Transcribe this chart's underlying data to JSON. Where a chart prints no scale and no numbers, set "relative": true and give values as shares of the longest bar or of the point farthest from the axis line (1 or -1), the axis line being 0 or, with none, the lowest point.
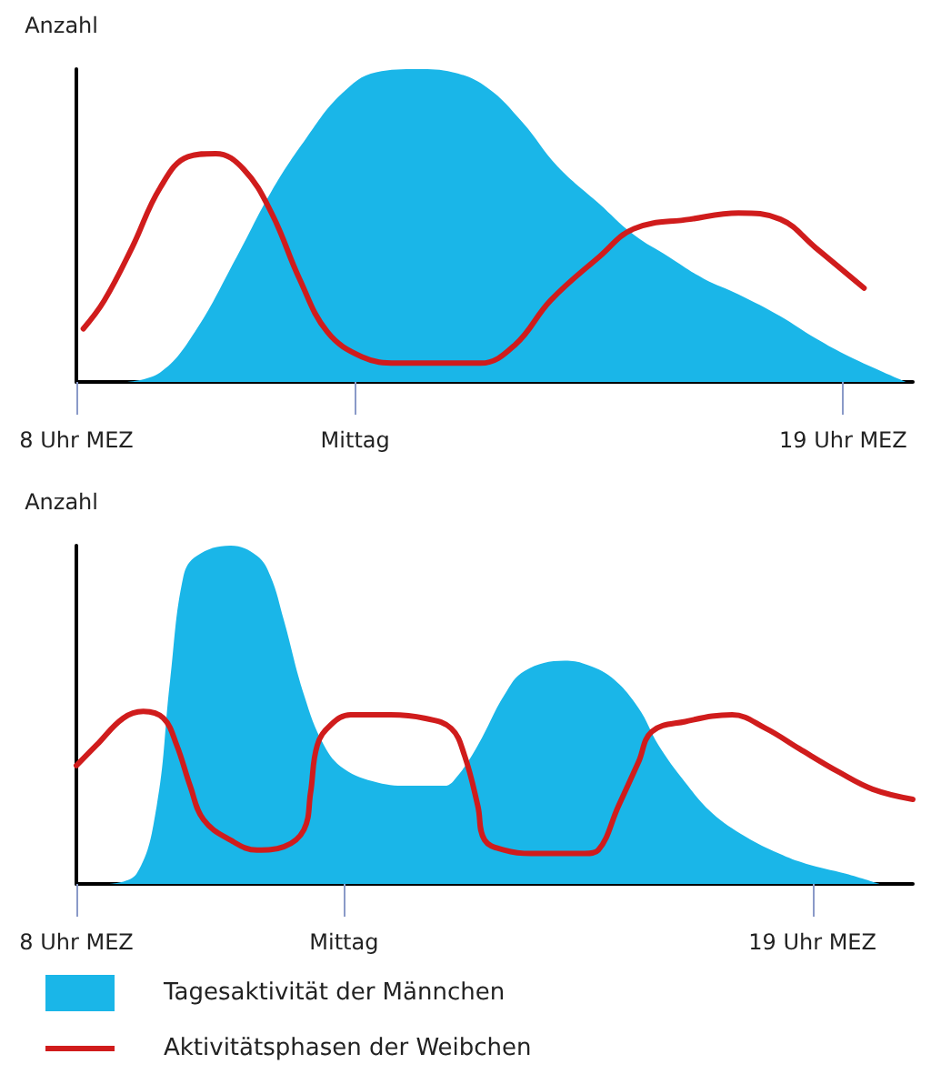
{
  "chart_data": [
    {
      "type": "area",
      "ylabel": "Anzahl",
      "relative": true,
      "xlim": [
        8,
        20
      ],
      "xticks": [
        {
          "value": 8,
          "label": "8 Uhr MEZ"
        },
        {
          "value": 12,
          "label": "Mittag"
        },
        {
          "value": 19,
          "label": "19 Uhr MEZ"
        }
      ],
      "series": [
        {
          "color": "#1ab6e8",
          "x": [
            8.7,
            9.2,
            9.7,
            10.3,
            10.8,
            11.3,
            11.8,
            12.3,
            12.9,
            13.4,
            13.9,
            14.4,
            14.9,
            15.5,
            16.0,
            16.5,
            17.0,
            17.5,
            18.1,
            18.6,
            19.1,
            19.9
          ],
          "values": [
            0,
            0.03,
            0.16,
            0.4,
            0.61,
            0.78,
            0.92,
            0.99,
            1,
            0.99,
            0.94,
            0.83,
            0.69,
            0.57,
            0.47,
            0.4,
            0.33,
            0.28,
            0.21,
            0.14,
            0.08,
            0
          ]
        },
        {
          "type": "line",
          "color": "#d01c1c",
          "x": [
            8.1,
            8.4,
            8.8,
            9.2,
            9.6,
            10.0,
            10.4,
            10.8,
            11.2,
            11.6,
            12.1,
            12.6,
            13.1,
            13.8,
            14.3,
            14.8,
            15.5,
            16.0,
            16.8,
            17.5,
            18.1,
            18.6,
            19.3
          ],
          "values": [
            0.17,
            0.26,
            0.43,
            0.62,
            0.72,
            0.73,
            0.68,
            0.54,
            0.33,
            0.16,
            0.08,
            0.06,
            0.06,
            0.06,
            0.12,
            0.26,
            0.4,
            0.49,
            0.52,
            0.54,
            0.52,
            0.43,
            0.3
          ]
        }
      ]
    },
    {
      "type": "area",
      "ylabel": "Anzahl",
      "relative": true,
      "xlim": [
        8,
        20.5
      ],
      "xticks": [
        {
          "value": 8,
          "label": "8 Uhr MEZ"
        },
        {
          "value": 12,
          "label": "Mittag"
        },
        {
          "value": 19,
          "label": "19 Uhr MEZ"
        }
      ],
      "legend": "bottom",
      "series": [
        {
          "name": "Tagesaktivität der Männchen",
          "color": "#1ab6e8",
          "x": [
            8.5,
            8.9,
            9.2,
            9.4,
            9.6,
            9.8,
            10.3,
            10.7,
            10.9,
            11.1,
            11.4,
            11.7,
            12.0,
            12.5,
            13.0,
            13.5,
            13.7,
            14.0,
            14.4,
            14.7,
            15.3,
            15.6,
            16.0,
            16.4,
            16.7,
            17.1,
            17.5,
            18.0,
            18.5,
            18.9,
            19.5,
            20.0
          ],
          "values": [
            0,
            0.03,
            0.23,
            0.6,
            0.91,
            0.97,
            1,
            0.97,
            0.91,
            0.78,
            0.56,
            0.41,
            0.34,
            0.3,
            0.29,
            0.29,
            0.32,
            0.41,
            0.56,
            0.63,
            0.66,
            0.65,
            0.61,
            0.52,
            0.41,
            0.3,
            0.21,
            0.14,
            0.09,
            0.06,
            0.03,
            0
          ]
        },
        {
          "type": "line",
          "name": "Aktivitätsphasen der Weibchen",
          "color": "#d01c1c",
          "x": [
            8.0,
            8.3,
            8.7,
            9.0,
            9.3,
            9.5,
            9.7,
            9.9,
            10.3,
            10.7,
            11.1,
            11.4,
            11.5,
            11.6,
            11.8,
            12.1,
            12.7,
            13.2,
            13.6,
            13.8,
            14.0,
            14.1,
            14.4,
            14.8,
            15.6,
            15.8,
            16.1,
            16.4,
            16.6,
            17.1,
            17.8,
            18.3,
            18.8,
            19.4,
            19.9,
            20.5
          ],
          "values": [
            0.35,
            0.41,
            0.49,
            0.51,
            0.49,
            0.41,
            0.29,
            0.19,
            0.13,
            0.1,
            0.11,
            0.16,
            0.27,
            0.41,
            0.47,
            0.5,
            0.5,
            0.49,
            0.46,
            0.38,
            0.23,
            0.13,
            0.1,
            0.09,
            0.09,
            0.1,
            0.23,
            0.36,
            0.45,
            0.48,
            0.5,
            0.46,
            0.4,
            0.33,
            0.28,
            0.25
          ]
        }
      ]
    }
  ]
}
